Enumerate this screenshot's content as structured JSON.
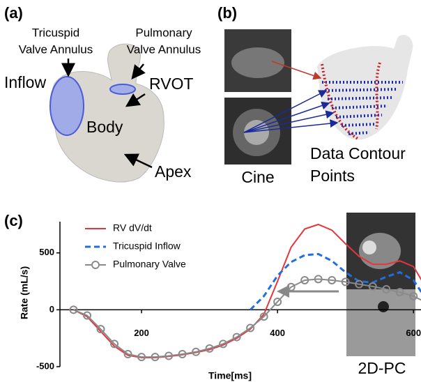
{
  "panel_a": {
    "label": "(a)",
    "tricuspid_annulus": [
      "Tricuspid",
      "Valve Annulus"
    ],
    "pulmonary_annulus": [
      "Pulmonary",
      "Valve Annulus"
    ],
    "inflow": "Inflow",
    "rvot": "RVOT",
    "body": "Body",
    "apex": "Apex"
  },
  "panel_b": {
    "label": "(b)",
    "cine": "Cine",
    "contour_points": [
      "Data Contour",
      "Points"
    ]
  },
  "panel_c": {
    "label": "(c)",
    "image_label": "2D-PC"
  },
  "chart_data": {
    "type": "line",
    "x_label": "Time[ms]",
    "y_label": "Rate (mL/s)",
    "x": [
      100,
      120,
      140,
      160,
      180,
      200,
      220,
      240,
      260,
      280,
      300,
      320,
      340,
      360,
      380,
      400,
      420,
      440,
      460,
      480,
      500,
      520,
      540,
      560,
      580,
      600,
      620,
      640
    ],
    "series": [
      {
        "name": "RV dV/dt",
        "color": "#e8343c",
        "style": "solid",
        "values": [
          0,
          -60,
          -190,
          -320,
          -400,
          -420,
          -420,
          -410,
          -395,
          -375,
          -350,
          -310,
          -250,
          -170,
          -40,
          250,
          550,
          710,
          750,
          700,
          580,
          470,
          400,
          400,
          430,
          380,
          180,
          0
        ]
      },
      {
        "name": "Tricuspid Inflow",
        "color": "#1f6fe0",
        "style": "dashed",
        "values": [
          null,
          null,
          null,
          null,
          null,
          null,
          null,
          null,
          null,
          null,
          null,
          null,
          null,
          0,
          120,
          300,
          420,
          480,
          490,
          430,
          330,
          250,
          240,
          290,
          330,
          260,
          80,
          0
        ]
      },
      {
        "name": "Pulmonary Valve",
        "color": "#8a8a8a",
        "style": "solid",
        "marker": "circle",
        "values": [
          0,
          -50,
          -170,
          -300,
          -390,
          -415,
          -415,
          -405,
          -390,
          -370,
          -340,
          -300,
          -240,
          -160,
          -60,
          70,
          200,
          260,
          270,
          260,
          245,
          225,
          205,
          180,
          155,
          120,
          60,
          0
        ]
      }
    ],
    "xlim": [
      80,
      650
    ],
    "ylim": [
      -500,
      750
    ],
    "xticks": [
      200,
      400,
      600
    ],
    "yticks": [
      -500,
      0,
      500
    ],
    "grid": false,
    "legend": "top-left"
  }
}
